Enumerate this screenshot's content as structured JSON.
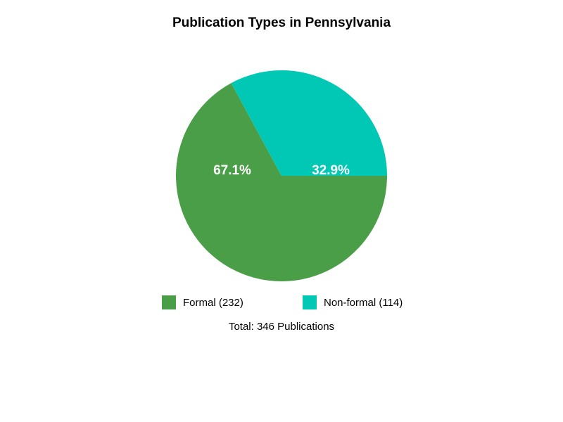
{
  "chart_data": {
    "type": "pie",
    "title": "Publication Types in Pennsylvania",
    "categories": [
      "Formal (232)",
      "Non-formal (114)"
    ],
    "values": [
      67.1,
      32.9
    ],
    "value_labels": [
      "67.1%",
      "32.9%"
    ],
    "colors": [
      "#4a9e48",
      "#00c8b4"
    ],
    "note": "Total: 346 Publications"
  }
}
